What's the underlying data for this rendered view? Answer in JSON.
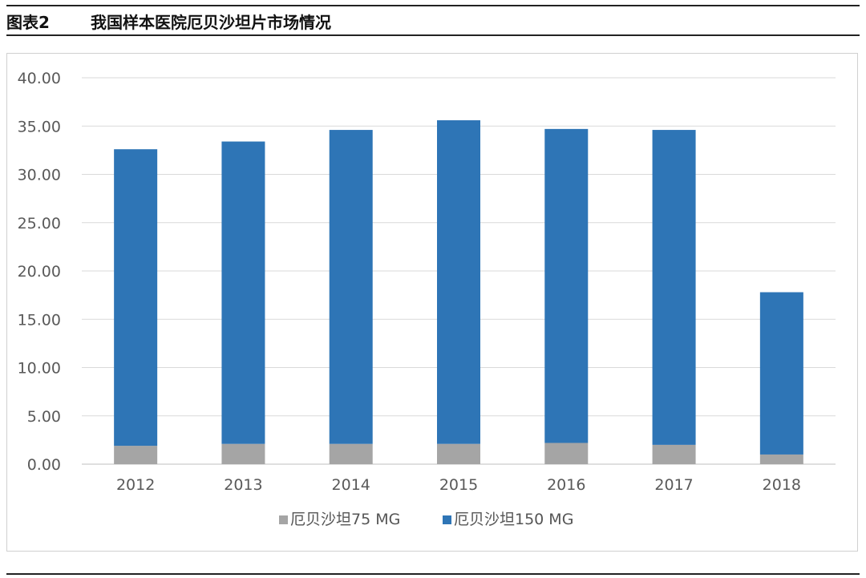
{
  "header": {
    "figure_number": "图表2",
    "title": "我国样本医院厄贝沙坦片市场情况"
  },
  "chart_data": {
    "type": "bar",
    "stacked": true,
    "categories": [
      "2012",
      "2013",
      "2014",
      "2015",
      "2016",
      "2017",
      "2018"
    ],
    "series": [
      {
        "name": "厄贝沙坦75 MG",
        "color": "#a5a5a5",
        "values": [
          1.9,
          2.1,
          2.1,
          2.1,
          2.2,
          2.0,
          1.0
        ]
      },
      {
        "name": "厄贝沙坦150 MG",
        "color": "#2e75b6",
        "values": [
          30.7,
          31.3,
          32.5,
          33.5,
          32.5,
          32.6,
          16.8
        ]
      }
    ],
    "yticks": [
      "0.00",
      "5.00",
      "10.00",
      "15.00",
      "20.00",
      "25.00",
      "30.00",
      "35.00",
      "40.00"
    ],
    "ylim": [
      0,
      40
    ],
    "grid": true,
    "legend_position": "bottom"
  }
}
